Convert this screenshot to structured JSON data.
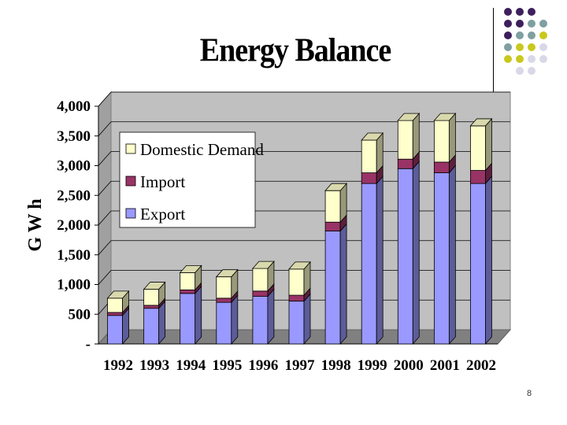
{
  "slide": {
    "title": "Energy Balance",
    "page_number": "8"
  },
  "colors": {
    "export": "#9999ff",
    "import": "#993366",
    "domestic": "#ffffcc",
    "wall": "#c0c0c0",
    "floor": "#808080"
  },
  "chart_data": {
    "type": "bar",
    "stacked": true,
    "three_d": true,
    "title": "",
    "xlabel": "",
    "ylabel": "G W h",
    "ylim": [
      0,
      4000
    ],
    "y_ticks": [
      {
        "value": 0,
        "label": "-"
      },
      {
        "value": 500,
        "label": "500"
      },
      {
        "value": 1000,
        "label": "1,000"
      },
      {
        "value": 1500,
        "label": "1,500"
      },
      {
        "value": 2000,
        "label": "2,000"
      },
      {
        "value": 2500,
        "label": "2,500"
      },
      {
        "value": 3000,
        "label": "3,000"
      },
      {
        "value": 3500,
        "label": "3,500"
      },
      {
        "value": 4000,
        "label": "4,000"
      }
    ],
    "categories": [
      "1992",
      "1993",
      "1994",
      "1995",
      "1996",
      "1997",
      "1998",
      "1999",
      "2000",
      "2001",
      "2002"
    ],
    "series": [
      {
        "name": "Export",
        "color": "#9999ff",
        "values": [
          480,
          600,
          850,
          700,
          800,
          720,
          1900,
          2700,
          2950,
          2880,
          2700
        ]
      },
      {
        "name": "Import",
        "color": "#993366",
        "values": [
          50,
          50,
          60,
          70,
          90,
          100,
          150,
          180,
          160,
          180,
          220
        ]
      },
      {
        "name": "Domestic Demand",
        "color": "#ffffcc",
        "values": [
          240,
          270,
          290,
          360,
          380,
          440,
          530,
          550,
          650,
          700,
          750
        ]
      }
    ],
    "legend": {
      "position": "upper-left",
      "entries": [
        "Domestic Demand",
        "Import",
        "Export"
      ]
    },
    "grid": true
  }
}
